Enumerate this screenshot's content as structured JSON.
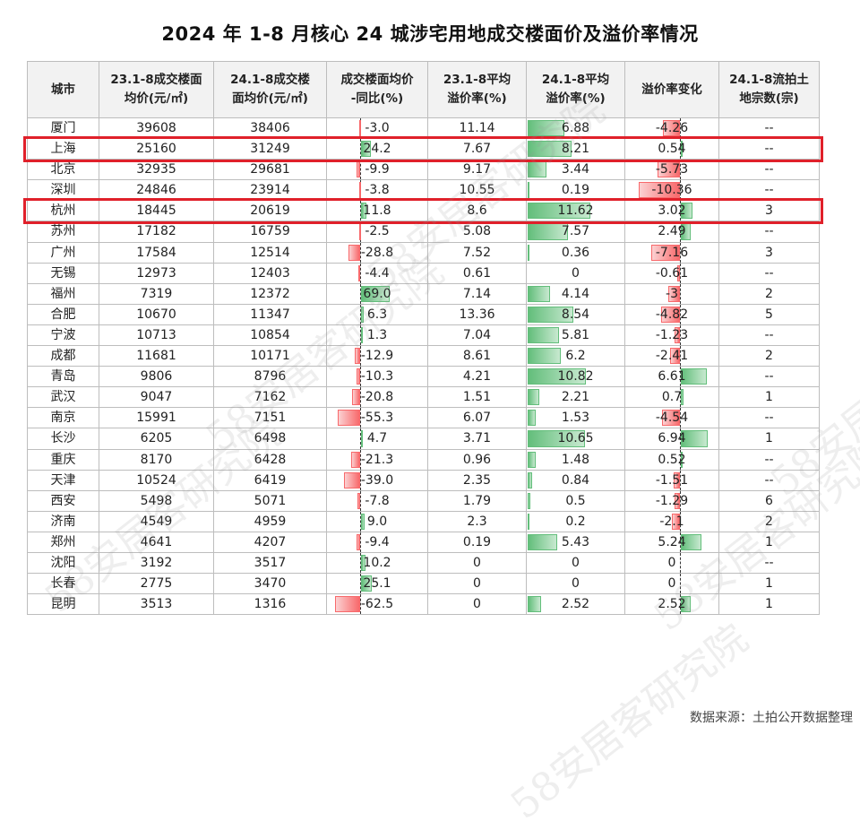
{
  "title": "2024 年 1-8 月核心 24 城涉宅用地成交楼面价及溢价率情况",
  "source": "数据来源：土拍公开数据整理",
  "watermark": "58安居客研究院",
  "colors": {
    "positive_bar": "#63be7b",
    "negative_bar": "#f8696b",
    "highlight_box": "#e0202a",
    "header_bg": "#f2f2f2"
  },
  "chart_data": {
    "type": "table",
    "columns": [
      "城市",
      "23.1-8成交楼面均价(元/㎡)",
      "24.1-8成交楼面均价(元/㎡)",
      "成交楼面均价-同比(%)",
      "23.1-8平均溢价率(%)",
      "24.1-8平均溢价率(%)",
      "溢价率变化",
      "24.1-8流拍土地宗数(宗)"
    ],
    "headers_display": [
      [
        "城市"
      ],
      [
        "23.1-8成交楼面",
        "均价(元/㎡)"
      ],
      [
        "24.1-8成交楼",
        "面均价(元/㎡)"
      ],
      [
        "成交楼面均价",
        "-同比(%)"
      ],
      [
        "23.1-8平均",
        "溢价率(%)"
      ],
      [
        "24.1-8平均",
        "溢价率(%)"
      ],
      [
        "溢价率变化"
      ],
      [
        "24.1-8流拍土",
        "地宗数(宗)"
      ]
    ],
    "highlighted_rows": [
      "上海",
      "杭州"
    ],
    "rows": [
      [
        "厦门",
        "39608",
        "38406",
        "-3.0",
        "11.14",
        "6.88",
        "-4.26",
        "--"
      ],
      [
        "上海",
        "25160",
        "31249",
        "24.2",
        "7.67",
        "8.21",
        "0.54",
        "--"
      ],
      [
        "北京",
        "32935",
        "29681",
        "-9.9",
        "9.17",
        "3.44",
        "-5.73",
        "--"
      ],
      [
        "深圳",
        "24846",
        "23914",
        "-3.8",
        "10.55",
        "0.19",
        "-10.36",
        "--"
      ],
      [
        "杭州",
        "18445",
        "20619",
        "11.8",
        "8.6",
        "11.62",
        "3.02",
        "3"
      ],
      [
        "苏州",
        "17182",
        "16759",
        "-2.5",
        "5.08",
        "7.57",
        "2.49",
        "--"
      ],
      [
        "广州",
        "17584",
        "12514",
        "-28.8",
        "7.52",
        "0.36",
        "-7.16",
        "3"
      ],
      [
        "无锡",
        "12973",
        "12403",
        "-4.4",
        "0.61",
        "0",
        "-0.61",
        "--"
      ],
      [
        "福州",
        "7319",
        "12372",
        "69.0",
        "7.14",
        "4.14",
        "-3",
        "2"
      ],
      [
        "合肥",
        "10670",
        "11347",
        "6.3",
        "13.36",
        "8.54",
        "-4.82",
        "5"
      ],
      [
        "宁波",
        "10713",
        "10854",
        "1.3",
        "7.04",
        "5.81",
        "-1.23",
        "--"
      ],
      [
        "成都",
        "11681",
        "10171",
        "-12.9",
        "8.61",
        "6.2",
        "-2.41",
        "2"
      ],
      [
        "青岛",
        "9806",
        "8796",
        "-10.3",
        "4.21",
        "10.82",
        "6.61",
        "--"
      ],
      [
        "武汉",
        "9047",
        "7162",
        "-20.8",
        "1.51",
        "2.21",
        "0.7",
        "1"
      ],
      [
        "南京",
        "15991",
        "7151",
        "-55.3",
        "6.07",
        "1.53",
        "-4.54",
        "--"
      ],
      [
        "长沙",
        "6205",
        "6498",
        "4.7",
        "3.71",
        "10.65",
        "6.94",
        "1"
      ],
      [
        "重庆",
        "8170",
        "6428",
        "-21.3",
        "0.96",
        "1.48",
        "0.52",
        "--"
      ],
      [
        "天津",
        "10524",
        "6419",
        "-39.0",
        "2.35",
        "0.84",
        "-1.51",
        "--"
      ],
      [
        "西安",
        "5498",
        "5071",
        "-7.8",
        "1.79",
        "0.5",
        "-1.29",
        "6"
      ],
      [
        "济南",
        "4549",
        "4959",
        "9.0",
        "2.3",
        "0.2",
        "-2.1",
        "2"
      ],
      [
        "郑州",
        "4641",
        "4207",
        "-9.4",
        "0.19",
        "5.43",
        "5.24",
        "1"
      ],
      [
        "沈阳",
        "3192",
        "3517",
        "10.2",
        "0",
        "0",
        "0",
        "--"
      ],
      [
        "长春",
        "2775",
        "3470",
        "25.1",
        "0",
        "0",
        "0",
        "1"
      ],
      [
        "昆明",
        "3513",
        "1316",
        "-62.5",
        "0",
        "2.52",
        "2.52",
        "1"
      ]
    ]
  }
}
